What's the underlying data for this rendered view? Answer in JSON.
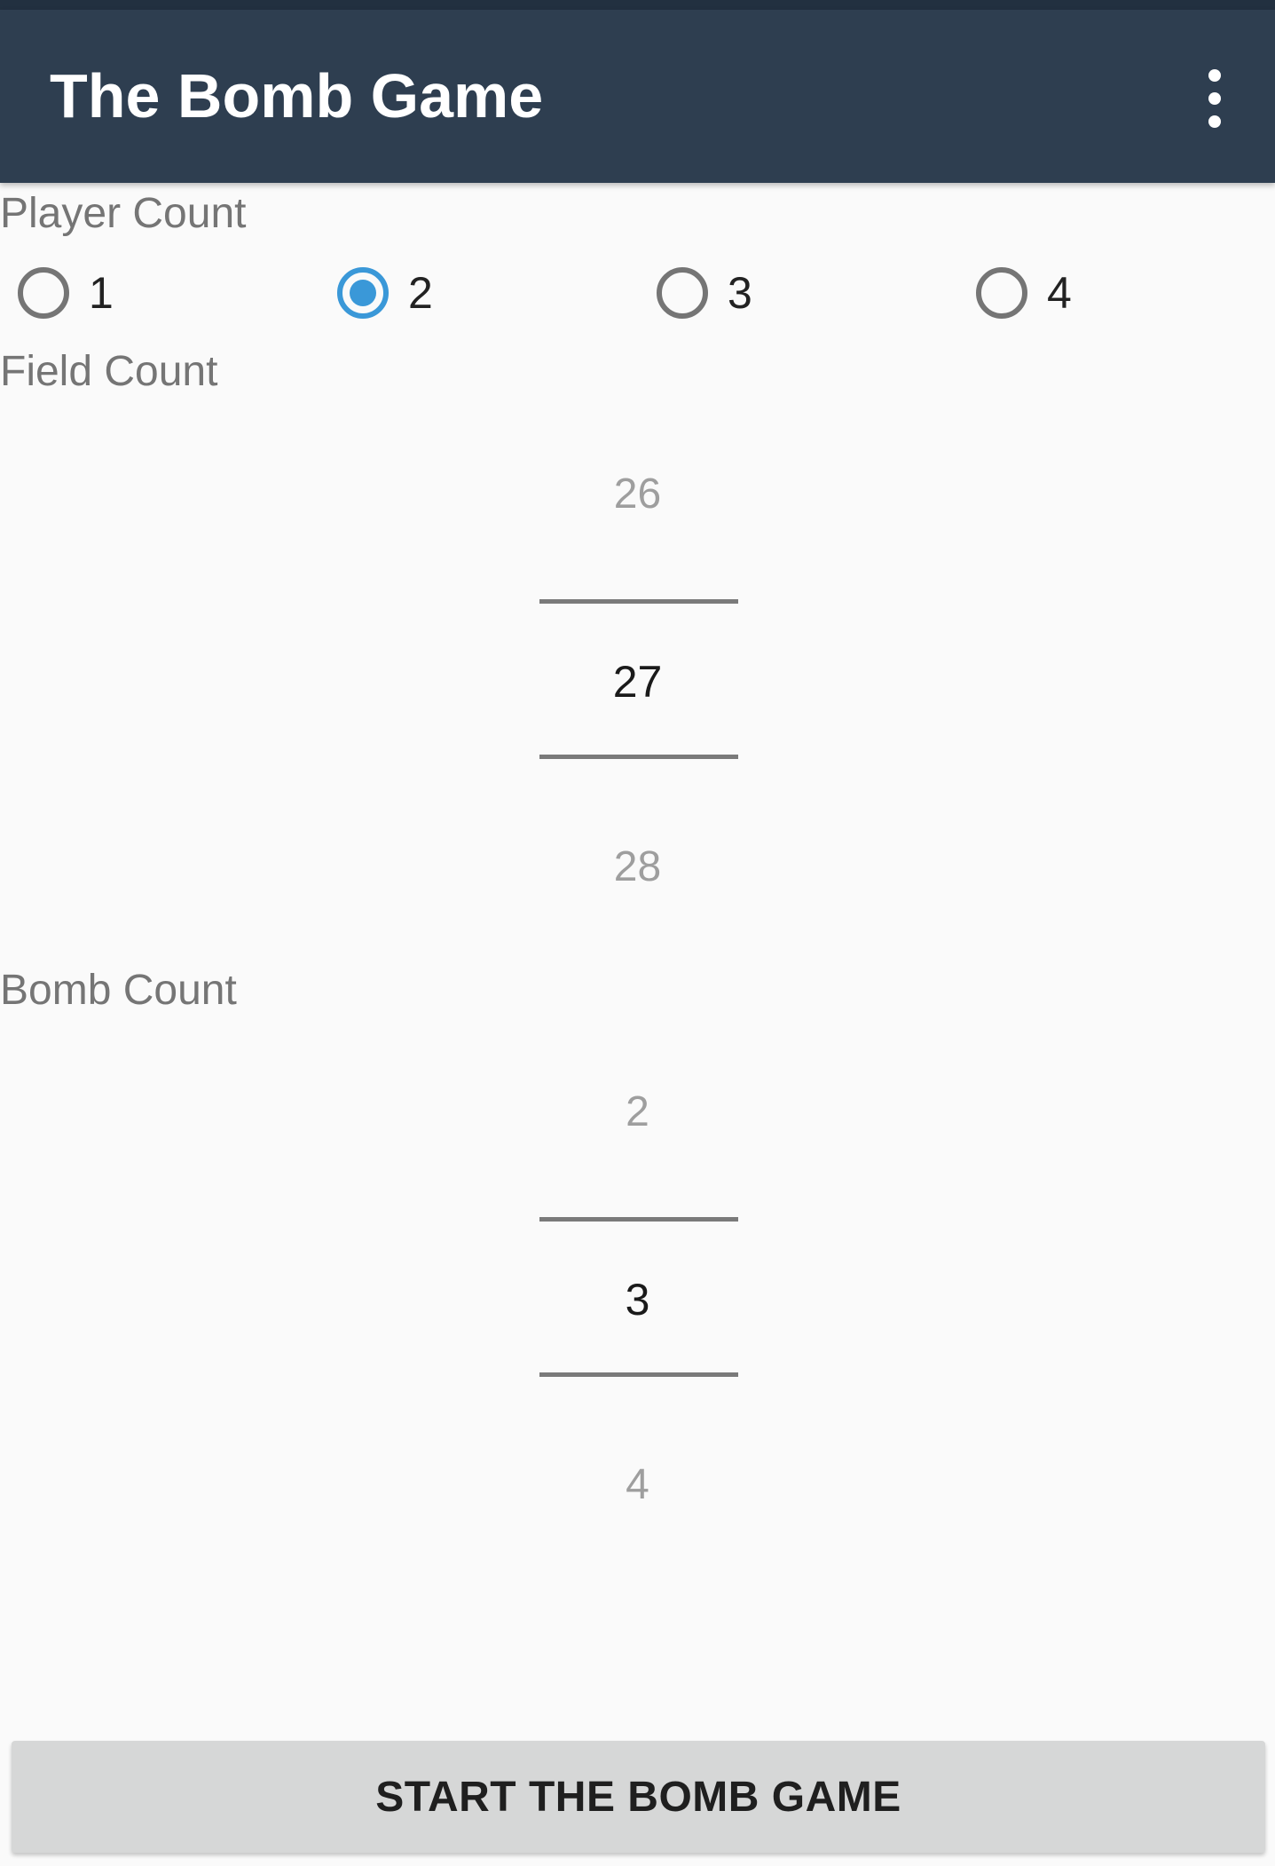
{
  "app_bar": {
    "title": "The Bomb Game",
    "menu_icon": "more-vert-icon"
  },
  "player_count": {
    "label": "Player Count",
    "options": [
      "1",
      "2",
      "3",
      "4"
    ],
    "selected": "2",
    "accent_color": "#3a98d8"
  },
  "field_count": {
    "label": "Field Count",
    "prev": "26",
    "value": "27",
    "next": "28"
  },
  "bomb_count": {
    "label": "Bomb Count",
    "prev": "2",
    "value": "3",
    "next": "4"
  },
  "start_button": {
    "label": "START THE BOMB GAME"
  },
  "colors": {
    "toolbar": "#2e3e50",
    "background": "#fafafa",
    "button": "#d6d7d7"
  }
}
